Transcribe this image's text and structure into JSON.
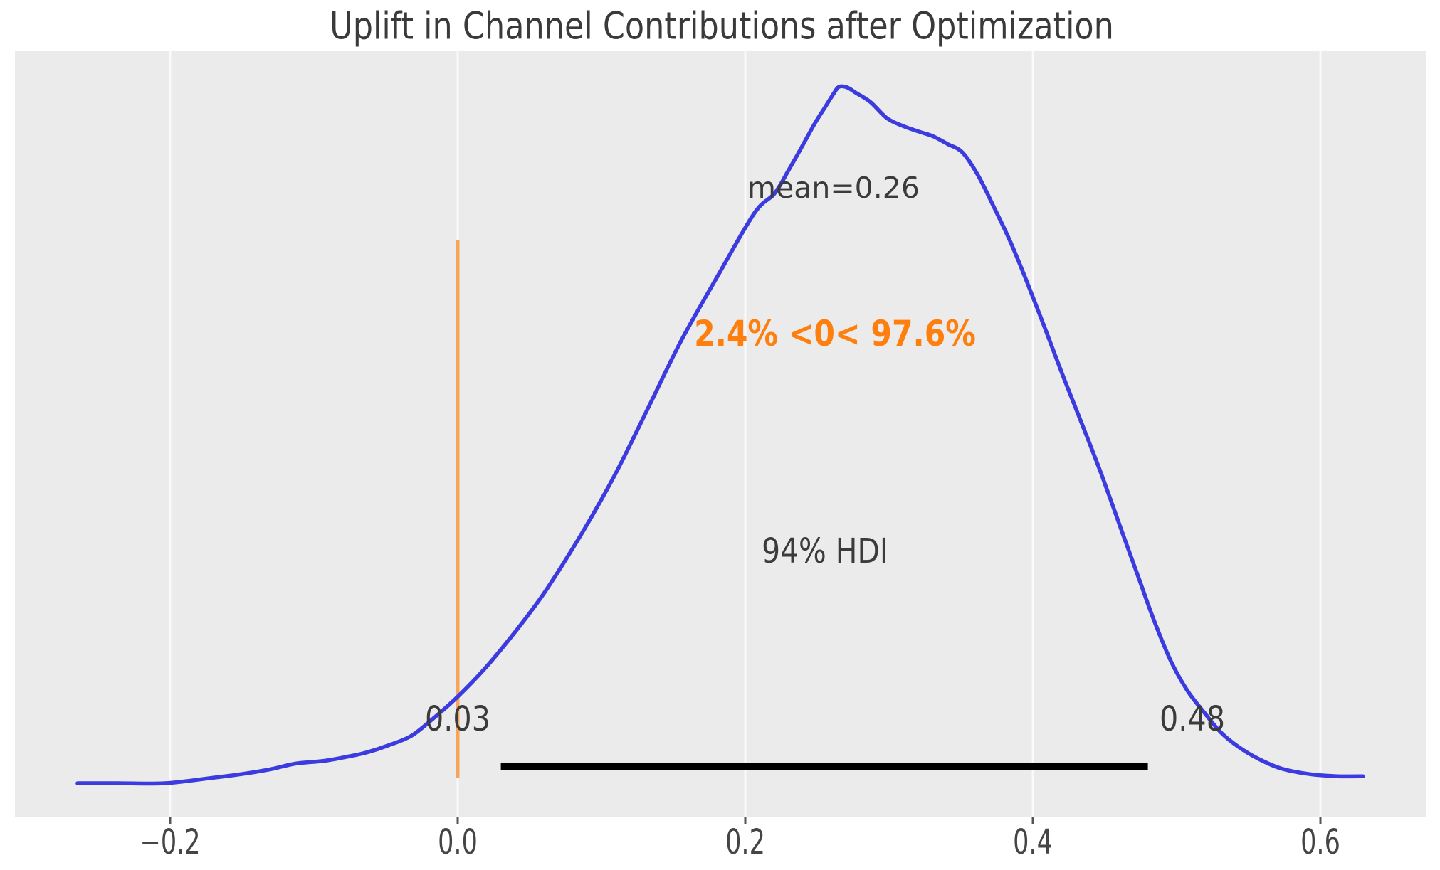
{
  "chart_data": {
    "type": "kde",
    "title": "Uplift in Channel Contributions after Optimization",
    "xlabel": "",
    "ylabel": "",
    "xlim": [
      -0.308,
      0.673
    ],
    "ylim_density_norm": [
      -0.05,
      1.05
    ],
    "grid": "vertical white gridlines on gray panel",
    "legend": "none",
    "xticks": [
      -0.2,
      0.0,
      0.2,
      0.4,
      0.6
    ],
    "xtick_labels": [
      "−0.2",
      "0.0",
      "0.2",
      "0.4",
      "0.6"
    ],
    "mean": 0.26,
    "mean_label": "mean=0.26",
    "ref_val": 0,
    "ref_val_label": "2.4% <0< 97.6%",
    "pct_below_ref": 2.4,
    "pct_above_ref": 97.6,
    "hdi_prob": 0.94,
    "hdi_label": "94% HDI",
    "hdi_low": 0.03,
    "hdi_high": 0.48,
    "hdi_low_label": "0.03",
    "hdi_high_label": "0.48",
    "curve": {
      "x": [
        -0.2644,
        -0.2366,
        -0.2035,
        -0.1698,
        -0.1505,
        -0.1302,
        -0.1129,
        -0.0931,
        -0.0767,
        -0.0634,
        -0.0485,
        -0.0322,
        -0.0163,
        0.0,
        0.0183,
        0.0381,
        0.0579,
        0.0738,
        0.0926,
        0.1114,
        0.1332,
        0.1554,
        0.1817,
        0.2064,
        0.2203,
        0.2297,
        0.2391,
        0.2485,
        0.2559,
        0.2614,
        0.2653,
        0.2708,
        0.2772,
        0.2871,
        0.2985,
        0.3094,
        0.3203,
        0.3307,
        0.3406,
        0.351,
        0.3619,
        0.3728,
        0.3837,
        0.395,
        0.4084,
        0.4213,
        0.4347,
        0.448,
        0.4614,
        0.4738,
        0.4847,
        0.496,
        0.5074,
        0.5193,
        0.5307,
        0.5431,
        0.5569,
        0.5728,
        0.5926,
        0.6124,
        0.6297
      ],
      "density": [
        0.0,
        0.0,
        0.0,
        0.008,
        0.013,
        0.02,
        0.028,
        0.032,
        0.038,
        0.044,
        0.054,
        0.068,
        0.094,
        0.124,
        0.163,
        0.212,
        0.266,
        0.316,
        0.38,
        0.45,
        0.541,
        0.634,
        0.73,
        0.817,
        0.845,
        0.877,
        0.911,
        0.946,
        0.97,
        0.988,
        0.998,
        0.997,
        0.989,
        0.976,
        0.953,
        0.942,
        0.934,
        0.927,
        0.916,
        0.904,
        0.871,
        0.826,
        0.779,
        0.723,
        0.652,
        0.582,
        0.512,
        0.441,
        0.364,
        0.293,
        0.231,
        0.175,
        0.133,
        0.101,
        0.073,
        0.052,
        0.035,
        0.021,
        0.013,
        0.01,
        0.01
      ]
    },
    "colors": {
      "panel_background": "#ebebeb",
      "figure_background": "#ffffff",
      "curve": "#3b3be0",
      "ref_line": "#f8a55c",
      "ref_text": "#ff7f0e",
      "hdi_line": "#000000",
      "text": "#3b3b3b",
      "tick_text": "#454545",
      "gridline": "#fafafa"
    }
  }
}
